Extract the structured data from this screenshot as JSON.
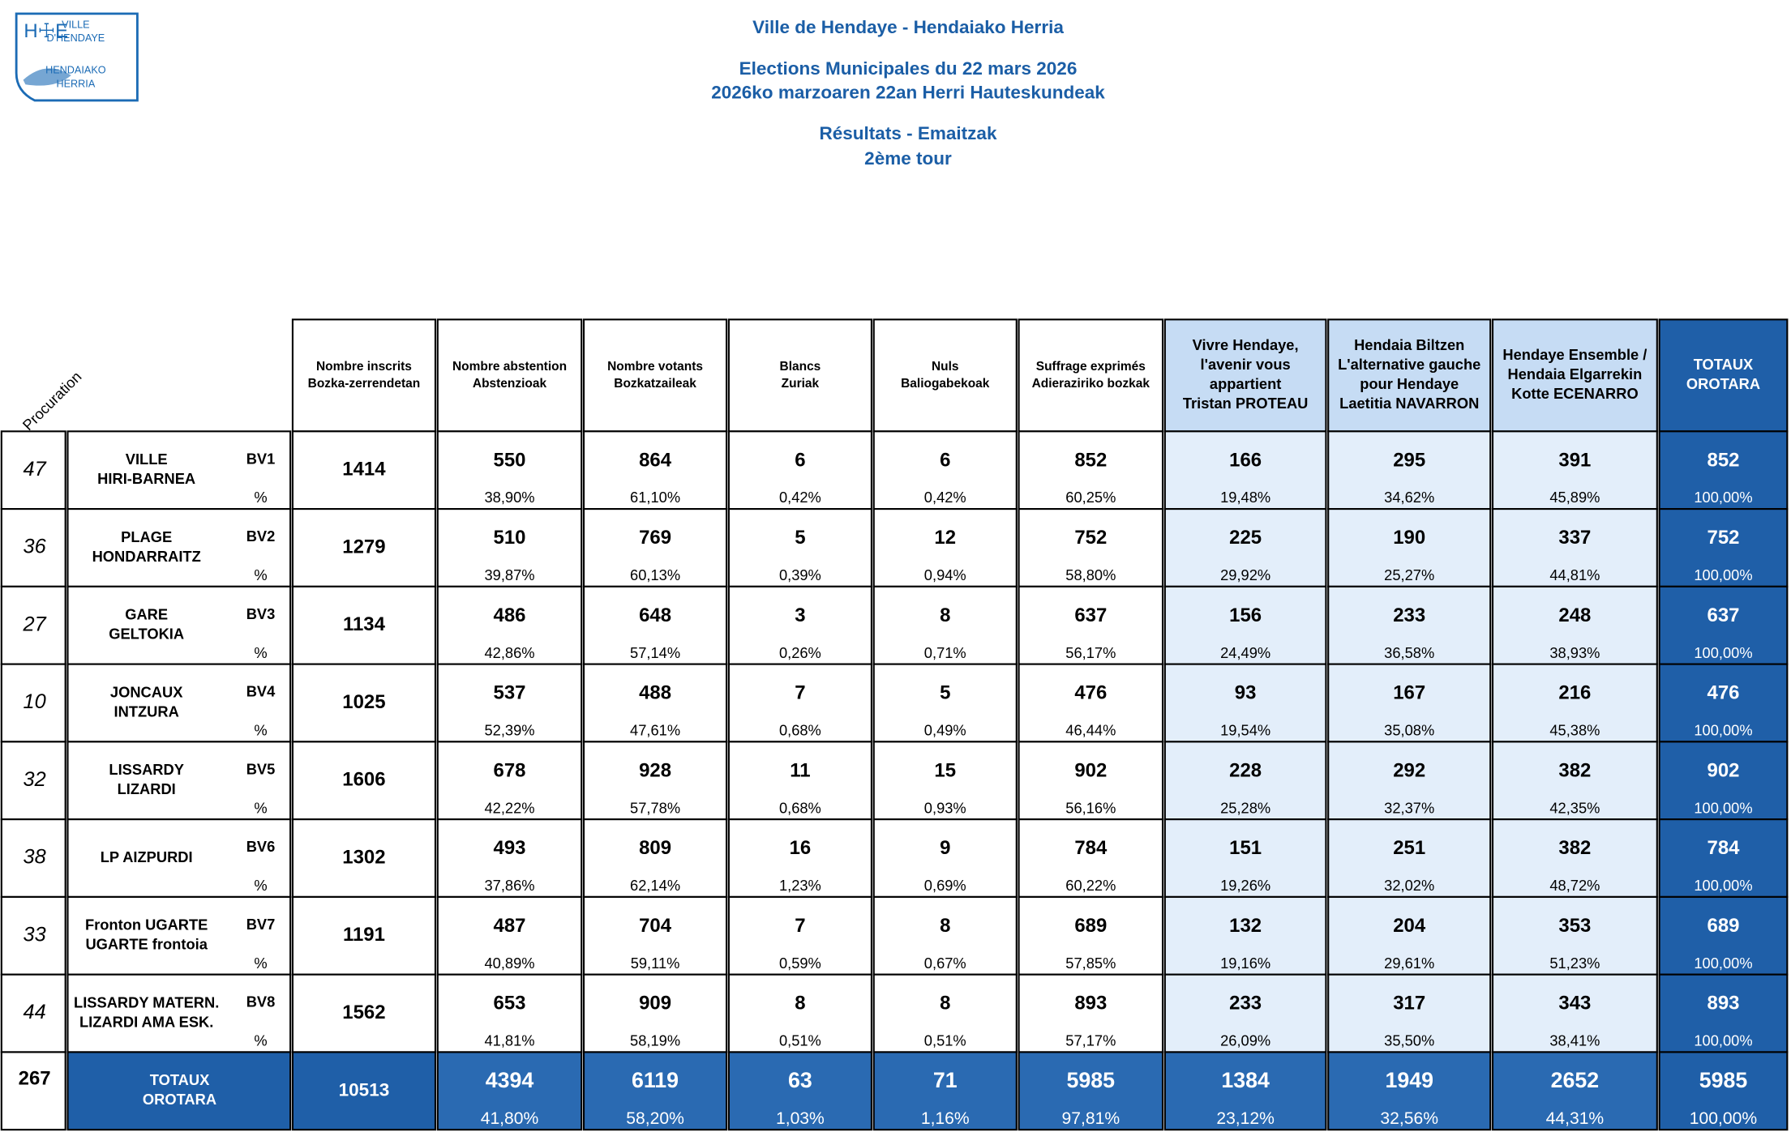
{
  "header": {
    "city": "Ville de Hendaye - Hendaiako Herria",
    "title_fr": "Elections Municipales du 22 mars 2026",
    "title_eu": "2026ko marzoaren 22an Herri Hauteskundeak",
    "results": "Résultats - Emaitzak",
    "round": "2ème tour"
  },
  "logo": {
    "mark": "H☩E",
    "lines": [
      "VILLE",
      "D'HENDAYE",
      "HENDAIAKO",
      "HERRIA"
    ]
  },
  "table": {
    "procuration_label": "Procuration",
    "columns": [
      [
        "Nombre inscrits",
        "Bozka-zerrendetan"
      ],
      [
        "Nombre abstention",
        "Abstenzioak"
      ],
      [
        "Nombre votants",
        "Bozkatzaileak"
      ],
      [
        "Blancs",
        "Zuriak"
      ],
      [
        "Nuls",
        "Baliogabekoak"
      ],
      [
        "Suffrage exprimés",
        "Adieraziriko bozkak"
      ],
      [
        "Vivre Hendaye,",
        "l'avenir vous",
        "appartient",
        "Tristan PROTEAU"
      ],
      [
        "Hendaia Biltzen",
        "L'alternative gauche",
        "pour Hendaye",
        "Laetitia NAVARRON"
      ],
      [
        "Hendaye Ensemble /",
        "Hendaia Elgarrekin",
        "Kotte ECENARRO"
      ],
      [
        "TOTAUX",
        "OROTARA"
      ]
    ],
    "rows": [
      {
        "procuration": 47,
        "name": [
          "VILLE",
          "HIRI-BARNEA"
        ],
        "bv": "BV1",
        "pct": "%",
        "inscrits": 1414,
        "cells": [
          [
            550,
            "38,90%"
          ],
          [
            864,
            "61,10%"
          ],
          [
            6,
            "0,42%"
          ],
          [
            6,
            "0,42%"
          ],
          [
            852,
            "60,25%"
          ],
          [
            166,
            "19,48%"
          ],
          [
            295,
            "34,62%"
          ],
          [
            391,
            "45,89%"
          ],
          [
            852,
            "100,00%"
          ]
        ]
      },
      {
        "procuration": 36,
        "name": [
          "PLAGE",
          "HONDARRAITZ"
        ],
        "bv": "BV2",
        "pct": "%",
        "inscrits": 1279,
        "cells": [
          [
            510,
            "39,87%"
          ],
          [
            769,
            "60,13%"
          ],
          [
            5,
            "0,39%"
          ],
          [
            12,
            "0,94%"
          ],
          [
            752,
            "58,80%"
          ],
          [
            225,
            "29,92%"
          ],
          [
            190,
            "25,27%"
          ],
          [
            337,
            "44,81%"
          ],
          [
            752,
            "100,00%"
          ]
        ]
      },
      {
        "procuration": 27,
        "name": [
          "GARE",
          "GELTOKIA"
        ],
        "bv": "BV3",
        "pct": "%",
        "inscrits": 1134,
        "cells": [
          [
            486,
            "42,86%"
          ],
          [
            648,
            "57,14%"
          ],
          [
            3,
            "0,26%"
          ],
          [
            8,
            "0,71%"
          ],
          [
            637,
            "56,17%"
          ],
          [
            156,
            "24,49%"
          ],
          [
            233,
            "36,58%"
          ],
          [
            248,
            "38,93%"
          ],
          [
            637,
            "100,00%"
          ]
        ]
      },
      {
        "procuration": 10,
        "name": [
          "JONCAUX",
          "INTZURA"
        ],
        "bv": "BV4",
        "pct": "%",
        "inscrits": 1025,
        "cells": [
          [
            537,
            "52,39%"
          ],
          [
            488,
            "47,61%"
          ],
          [
            7,
            "0,68%"
          ],
          [
            5,
            "0,49%"
          ],
          [
            476,
            "46,44%"
          ],
          [
            93,
            "19,54%"
          ],
          [
            167,
            "35,08%"
          ],
          [
            216,
            "45,38%"
          ],
          [
            476,
            "100,00%"
          ]
        ]
      },
      {
        "procuration": 32,
        "name": [
          "LISSARDY",
          "LIZARDI"
        ],
        "bv": "BV5",
        "pct": "%",
        "inscrits": 1606,
        "cells": [
          [
            678,
            "42,22%"
          ],
          [
            928,
            "57,78%"
          ],
          [
            11,
            "0,68%"
          ],
          [
            15,
            "0,93%"
          ],
          [
            902,
            "56,16%"
          ],
          [
            228,
            "25,28%"
          ],
          [
            292,
            "32,37%"
          ],
          [
            382,
            "42,35%"
          ],
          [
            902,
            "100,00%"
          ]
        ]
      },
      {
        "procuration": 38,
        "name": [
          "LP AIZPURDI"
        ],
        "bv": "BV6",
        "pct": "%",
        "inscrits": 1302,
        "cells": [
          [
            493,
            "37,86%"
          ],
          [
            809,
            "62,14%"
          ],
          [
            16,
            "1,23%"
          ],
          [
            9,
            "0,69%"
          ],
          [
            784,
            "60,22%"
          ],
          [
            151,
            "19,26%"
          ],
          [
            251,
            "32,02%"
          ],
          [
            382,
            "48,72%"
          ],
          [
            784,
            "100,00%"
          ]
        ]
      },
      {
        "procuration": 33,
        "name": [
          "Fronton UGARTE",
          "UGARTE frontoia"
        ],
        "bv": "BV7",
        "pct": "%",
        "inscrits": 1191,
        "cells": [
          [
            487,
            "40,89%"
          ],
          [
            704,
            "59,11%"
          ],
          [
            7,
            "0,59%"
          ],
          [
            8,
            "0,67%"
          ],
          [
            689,
            "57,85%"
          ],
          [
            132,
            "19,16%"
          ],
          [
            204,
            "29,61%"
          ],
          [
            353,
            "51,23%"
          ],
          [
            689,
            "100,00%"
          ]
        ]
      },
      {
        "procuration": 44,
        "name": [
          "LISSARDY MATERN.",
          "LIZARDI AMA ESK."
        ],
        "bv": "BV8",
        "pct": "%",
        "inscrits": 1562,
        "cells": [
          [
            653,
            "41,81%"
          ],
          [
            909,
            "58,19%"
          ],
          [
            8,
            "0,51%"
          ],
          [
            8,
            "0,51%"
          ],
          [
            893,
            "57,17%"
          ],
          [
            233,
            "26,09%"
          ],
          [
            317,
            "35,50%"
          ],
          [
            343,
            "38,41%"
          ],
          [
            893,
            "100,00%"
          ]
        ]
      }
    ],
    "totals": {
      "procuration": 267,
      "name": [
        "TOTAUX",
        "OROTARA"
      ],
      "inscrits": 10513,
      "cells": [
        [
          4394,
          "41,80%"
        ],
        [
          6119,
          "58,20%"
        ],
        [
          63,
          "1,03%"
        ],
        [
          71,
          "1,16%"
        ],
        [
          5985,
          "97,81%"
        ],
        [
          1384,
          "23,12%"
        ],
        [
          1949,
          "32,56%"
        ],
        [
          2652,
          "44,31%"
        ],
        [
          5985,
          "100,00%"
        ]
      ]
    }
  }
}
